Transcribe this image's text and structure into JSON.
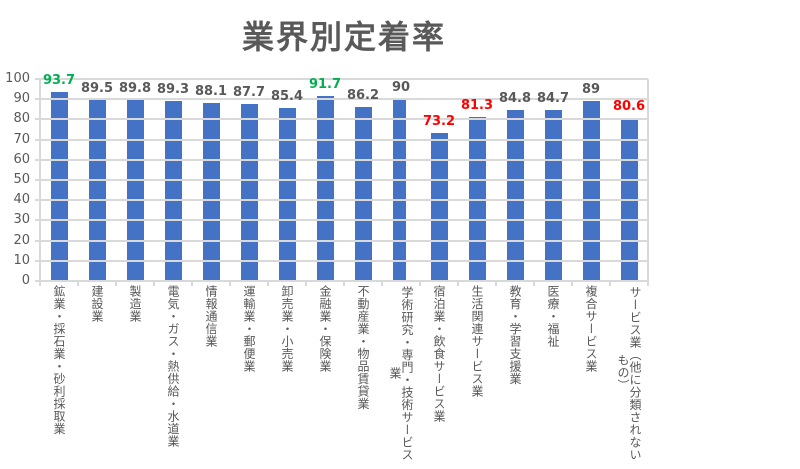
{
  "title": "業界別定着率",
  "colors": {
    "background": "#FFFFFF",
    "bar": "#4472C4",
    "grid": "#D9D9D9",
    "axis_text": "#595959",
    "title_text": "#595959",
    "label_default": "#595959",
    "label_high": "#00B050",
    "label_low": "#FF0000",
    "highlight_border": "#FFFFFF"
  },
  "chart_data": {
    "type": "bar",
    "title": "業界別定着率",
    "xlabel": "",
    "ylabel": "",
    "categories": [
      "鉱業・採石業・砂利採取業",
      "建設業",
      "製造業",
      "電気・ガス・熱供給・水道業",
      "情報通信業",
      "運輸業・郵便業",
      "卸売業・小売業",
      "金融業・保険業",
      "不動産業・物品賃貸業",
      "学術研究・専門・技術サービス業",
      "宿泊業・飲食サービス業",
      "生活関連サービス業",
      "教育・学習支援業",
      "医療・福祉",
      "複合サービス業",
      "サービス業（他に分類されないもの）"
    ],
    "values": [
      93.7,
      89.5,
      89.8,
      89.3,
      88.1,
      87.7,
      85.4,
      91.7,
      86.2,
      90,
      73.2,
      81.3,
      84.8,
      84.7,
      89,
      80.6
    ],
    "value_labels": [
      "93.7",
      "89.5",
      "89.8",
      "89.3",
      "88.1",
      "87.7",
      "85.4",
      "91.7",
      "86.2",
      "90",
      "73.2",
      "81.3",
      "84.8",
      "84.7",
      "89",
      "80.6"
    ],
    "label_styles": [
      "high",
      "default",
      "default",
      "default",
      "default",
      "default",
      "default",
      "high",
      "default",
      "default",
      "low",
      "low",
      "default",
      "default",
      "default",
      "low"
    ],
    "ylim": [
      0,
      100
    ],
    "yticks": [
      0,
      10,
      20,
      30,
      40,
      50,
      60,
      70,
      80,
      90,
      100
    ],
    "grid": true,
    "gridlines_over_bars": true,
    "legend": false,
    "highlighted_bar_index": 9
  }
}
